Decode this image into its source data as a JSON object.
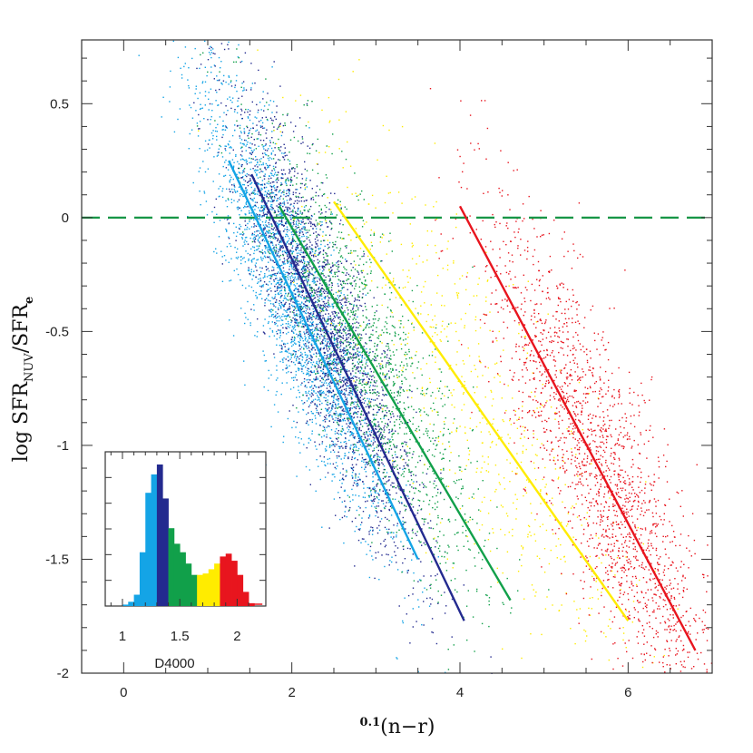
{
  "chart_data": {
    "type": "scatter",
    "xlabel": {
      "superscript": "0.1",
      "main": "(n−r)"
    },
    "ylabel": {
      "prefix": "log  SFR",
      "sub1": "NUV",
      "mid": "/SFR",
      "sub2": "e"
    },
    "xlim": [
      -0.5,
      7.0
    ],
    "ylim": [
      -2.0,
      0.78
    ],
    "x_ticks": [
      0,
      2,
      4,
      6
    ],
    "y_ticks": [
      0.5,
      0,
      -0.5,
      -1,
      -1.5,
      -2
    ],
    "reference_line": {
      "y": 0,
      "style": "dashed",
      "color": "#169646"
    },
    "groups": [
      {
        "color": "#14a4e6",
        "line": [
          [
            1.25,
            0.25
          ],
          [
            3.5,
            -1.5
          ]
        ],
        "cloud_center": [
          2.0,
          -0.4
        ],
        "spread": [
          0.55,
          0.45
        ],
        "count": 2600
      },
      {
        "color": "#232a8f",
        "line": [
          [
            1.52,
            0.19
          ],
          [
            4.05,
            -1.77
          ]
        ],
        "cloud_center": [
          2.4,
          -0.55
        ],
        "spread": [
          0.55,
          0.45
        ],
        "count": 2400
      },
      {
        "color": "#11a04a",
        "line": [
          [
            1.85,
            0.05
          ],
          [
            4.6,
            -1.68
          ]
        ],
        "cloud_center": [
          2.9,
          -0.8
        ],
        "spread": [
          0.65,
          0.5
        ],
        "count": 1500
      },
      {
        "color": "#ffec00",
        "line": [
          [
            2.5,
            0.07
          ],
          [
            6.0,
            -1.77
          ]
        ],
        "cloud_center": [
          4.2,
          -0.7
        ],
        "spread": [
          1.0,
          0.65
        ],
        "count": 700
      },
      {
        "color": "#e8151e",
        "line": [
          [
            4.0,
            0.05
          ],
          [
            6.8,
            -1.9
          ]
        ],
        "cloud_center": [
          5.7,
          -0.85
        ],
        "spread": [
          0.7,
          0.55
        ],
        "count": 2000
      }
    ],
    "inset": {
      "type": "histogram",
      "xlabel": "D4000",
      "xlim": [
        0.85,
        2.25
      ],
      "x_ticks": [
        1,
        1.5,
        2
      ],
      "x_tick_labels": [
        "1",
        "1.5",
        "2"
      ],
      "bins": [
        {
          "x0": 1.0,
          "x1": 1.05,
          "h": 0.01,
          "color": "#14a4e6"
        },
        {
          "x0": 1.05,
          "x1": 1.1,
          "h": 0.03,
          "color": "#14a4e6"
        },
        {
          "x0": 1.1,
          "x1": 1.15,
          "h": 0.08,
          "color": "#14a4e6"
        },
        {
          "x0": 1.15,
          "x1": 1.2,
          "h": 0.38,
          "color": "#14a4e6"
        },
        {
          "x0": 1.2,
          "x1": 1.25,
          "h": 0.8,
          "color": "#14a4e6"
        },
        {
          "x0": 1.25,
          "x1": 1.3,
          "h": 0.93,
          "color": "#14a4e6"
        },
        {
          "x0": 1.3,
          "x1": 1.35,
          "h": 1.0,
          "color": "#232a8f"
        },
        {
          "x0": 1.35,
          "x1": 1.4,
          "h": 0.76,
          "color": "#232a8f"
        },
        {
          "x0": 1.4,
          "x1": 1.45,
          "h": 0.55,
          "color": "#11a04a"
        },
        {
          "x0": 1.45,
          "x1": 1.5,
          "h": 0.44,
          "color": "#11a04a"
        },
        {
          "x0": 1.5,
          "x1": 1.55,
          "h": 0.38,
          "color": "#11a04a"
        },
        {
          "x0": 1.55,
          "x1": 1.6,
          "h": 0.3,
          "color": "#11a04a"
        },
        {
          "x0": 1.6,
          "x1": 1.65,
          "h": 0.22,
          "color": "#11a04a"
        },
        {
          "x0": 1.65,
          "x1": 1.7,
          "h": 0.22,
          "color": "#ffec00"
        },
        {
          "x0": 1.7,
          "x1": 1.75,
          "h": 0.23,
          "color": "#ffec00"
        },
        {
          "x0": 1.75,
          "x1": 1.8,
          "h": 0.26,
          "color": "#ffec00"
        },
        {
          "x0": 1.8,
          "x1": 1.85,
          "h": 0.3,
          "color": "#ffec00"
        },
        {
          "x0": 1.85,
          "x1": 1.9,
          "h": 0.35,
          "color": "#e8151e"
        },
        {
          "x0": 1.9,
          "x1": 1.95,
          "h": 0.37,
          "color": "#e8151e"
        },
        {
          "x0": 1.95,
          "x1": 2.0,
          "h": 0.32,
          "color": "#e8151e"
        },
        {
          "x0": 2.0,
          "x1": 2.05,
          "h": 0.22,
          "color": "#e8151e"
        },
        {
          "x0": 2.05,
          "x1": 2.1,
          "h": 0.1,
          "color": "#e8151e"
        },
        {
          "x0": 2.1,
          "x1": 2.15,
          "h": 0.02,
          "color": "#e8151e"
        }
      ]
    }
  }
}
